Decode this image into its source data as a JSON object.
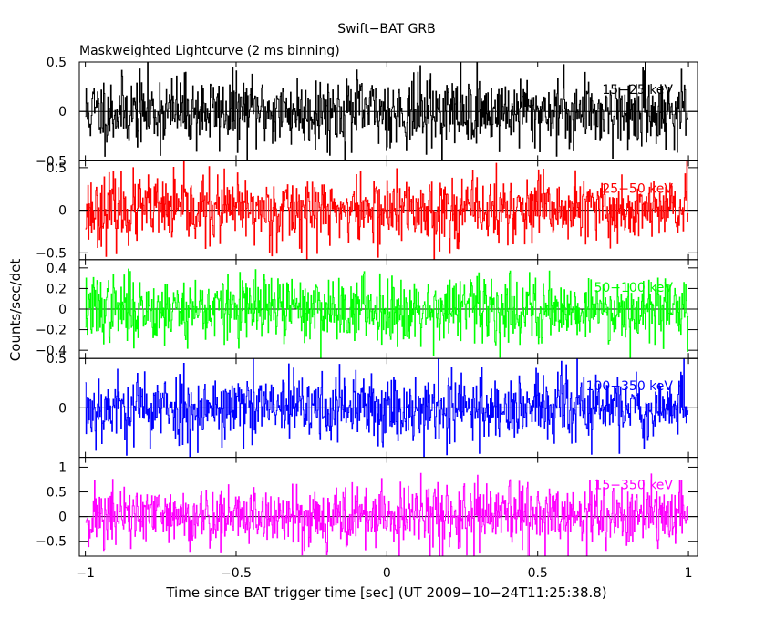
{
  "chart_data": {
    "type": "line",
    "title": "Swift−BAT GRB",
    "subtitle": "Maskweighted Lightcurve (2 ms binning)",
    "xlabel": "Time since BAT trigger time [sec] (UT 2009−10−24T11:25:38.8)",
    "ylabel": "Counts/sec/det",
    "xlim": [
      -1.02,
      1.03
    ],
    "x_ticks": [
      "−1",
      "−0.5",
      "0",
      "0.5",
      "1"
    ],
    "x_tick_values": [
      -1,
      -0.5,
      0,
      0.5,
      1
    ],
    "data_range": [
      -1,
      1
    ],
    "bin_size_sec": 0.002,
    "panels": [
      {
        "name": "15−25 keV",
        "color": "#000000",
        "ylim": [
          -0.5,
          0.5
        ],
        "y_ticks": [
          {
            "value": 0.5,
            "label": "0.5"
          },
          {
            "value": 0,
            "label": "0"
          },
          {
            "value": -0.5,
            "label": "−0.5"
          }
        ],
        "amplitude": 0.18,
        "seed": 11
      },
      {
        "name": "25−50 keV",
        "color": "#ff0000",
        "ylim": [
          -0.58,
          0.58
        ],
        "y_ticks": [
          {
            "value": 0.5,
            "label": "0.5"
          },
          {
            "value": 0,
            "label": "0"
          },
          {
            "value": -0.5,
            "label": "−0.5"
          }
        ],
        "amplitude": 0.2,
        "seed": 23
      },
      {
        "name": "50−100 keV",
        "color": "#00ff00",
        "ylim": [
          -0.48,
          0.48
        ],
        "y_ticks": [
          {
            "value": 0.4,
            "label": "0.4"
          },
          {
            "value": 0.2,
            "label": "0.2"
          },
          {
            "value": 0,
            "label": "0"
          },
          {
            "value": -0.2,
            "label": "−0.2"
          },
          {
            "value": -0.4,
            "label": "−0.4"
          }
        ],
        "amplitude": 0.16,
        "seed": 37
      },
      {
        "name": "100−350 keV",
        "color": "#0000ff",
        "ylim": [
          -0.5,
          0.5
        ],
        "y_ticks": [
          {
            "value": 0.5,
            "label": "0.5"
          },
          {
            "value": 0,
            "label": "0"
          }
        ],
        "amplitude": 0.18,
        "seed": 53
      },
      {
        "name": "15−350 keV",
        "color": "#ff00ff",
        "ylim": [
          -0.8,
          1.2
        ],
        "y_ticks": [
          {
            "value": 1,
            "label": "1"
          },
          {
            "value": 0.5,
            "label": "0.5"
          },
          {
            "value": 0,
            "label": "0"
          },
          {
            "value": -0.5,
            "label": "−0.5"
          }
        ],
        "amplitude": 0.32,
        "seed": 71
      }
    ]
  }
}
